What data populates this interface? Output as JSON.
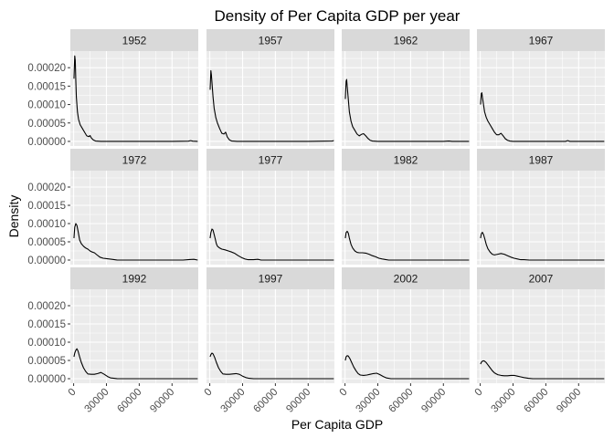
{
  "chart_data": {
    "type": "line",
    "title": "Density of Per Capita GDP per year",
    "xlabel": "Per Capita GDP",
    "ylabel": "Density",
    "xlim": [
      -3000,
      114000
    ],
    "ylim": [
      -1.25e-05,
      0.000245
    ],
    "x_ticks": [
      0,
      30000,
      60000,
      90000
    ],
    "x_tick_labels": [
      "0",
      "30000",
      "60000",
      "90000"
    ],
    "y_ticks": [
      0,
      5e-05,
      0.0001,
      0.00015,
      0.0002
    ],
    "y_tick_labels": [
      "0.00000",
      "0.00005",
      "0.00010",
      "0.00015",
      "0.00020"
    ],
    "grid": true,
    "colors": {
      "panel_bg": "#ebebeb",
      "strip_bg": "#d9d9d9",
      "grid": "#ffffff",
      "line": "#000000"
    },
    "panels": [
      {
        "label": "1952",
        "x": [
          300,
          1000,
          1500,
          2000,
          2500,
          3500,
          4500,
          6000,
          8000,
          10000,
          12000,
          14000,
          15000,
          16000,
          18000,
          20000,
          25000,
          30000,
          50000,
          90000,
          105000,
          107000,
          109000,
          113500
        ],
        "y": [
          0.00017,
          0.000232,
          0.00022,
          0.000165,
          0.00012,
          8e-05,
          6e-05,
          4.5e-05,
          3.5e-05,
          2.5e-05,
          1.5e-05,
          1.3e-05,
          1.6e-05,
          1e-05,
          4e-06,
          1e-06,
          0,
          0,
          0,
          0,
          6e-07,
          2e-06,
          6e-07,
          0
        ]
      },
      {
        "label": "1957",
        "x": [
          300,
          1000,
          1500,
          2000,
          3000,
          4000,
          5500,
          7000,
          9000,
          11000,
          13000,
          14500,
          16000,
          18000,
          20000,
          25000,
          30000,
          50000,
          90000,
          112000,
          113500
        ],
        "y": [
          0.00014,
          0.000192,
          0.00018,
          0.00016,
          0.00012,
          9e-05,
          6.5e-05,
          5e-05,
          3.5e-05,
          2.2e-05,
          2e-05,
          2.5e-05,
          1.2e-05,
          4e-06,
          1e-06,
          0,
          0,
          0,
          0,
          1e-06,
          2e-06
        ]
      },
      {
        "label": "1962",
        "x": [
          300,
          1000,
          1500,
          2000,
          3000,
          4000,
          5500,
          7000,
          9000,
          11000,
          13000,
          15000,
          17000,
          19000,
          21000,
          23000,
          25000,
          30000,
          50000,
          90000,
          95000,
          98000,
          113500
        ],
        "y": [
          0.000115,
          0.000163,
          0.000168,
          0.00015,
          0.000115,
          8e-05,
          5.5e-05,
          4e-05,
          3e-05,
          2e-05,
          1.5e-05,
          1.9e-05,
          2.1e-05,
          1.5e-05,
          8e-06,
          3e-06,
          1e-06,
          0,
          0,
          0,
          1e-06,
          0,
          0
        ]
      },
      {
        "label": "1967",
        "x": [
          300,
          1000,
          1500,
          2000,
          3000,
          4000,
          5500,
          7000,
          9000,
          11000,
          13000,
          15000,
          17000,
          19000,
          21000,
          23000,
          25000,
          27000,
          30000,
          50000,
          78000,
          80000,
          82000,
          113500
        ],
        "y": [
          0.0001,
          0.00013,
          0.000132,
          0.00012,
          0.0001,
          8e-05,
          6.5e-05,
          5.5e-05,
          4.5e-05,
          3.5e-05,
          2.5e-05,
          1.8e-05,
          1.8e-05,
          2.2e-05,
          1.5e-05,
          7e-06,
          3e-06,
          1e-06,
          0,
          0,
          0,
          2e-06,
          0,
          0
        ]
      },
      {
        "label": "1972",
        "x": [
          300,
          1000,
          2000,
          3000,
          4000,
          5500,
          7000,
          9000,
          11000,
          13000,
          15000,
          17000,
          19000,
          21000,
          24000,
          27000,
          30000,
          35000,
          40000,
          60000,
          100000,
          106000,
          110000,
          113500
        ],
        "y": [
          6e-05,
          9e-05,
          0.0001,
          9.5e-05,
          8e-05,
          5.5e-05,
          4.5e-05,
          3.8e-05,
          3.3e-05,
          3e-05,
          2.5e-05,
          2.2e-05,
          2e-05,
          1.5e-05,
          8e-06,
          5e-06,
          4e-06,
          2e-06,
          0,
          0,
          0,
          1.5e-06,
          2e-06,
          0
        ]
      },
      {
        "label": "1977",
        "x": [
          300,
          1000,
          2000,
          3000,
          4000,
          5000,
          6000,
          7000,
          9000,
          11000,
          14000,
          17000,
          20000,
          23000,
          26000,
          29000,
          32000,
          35000,
          40000,
          44000,
          47000,
          60000,
          113500
        ],
        "y": [
          6e-05,
          7.5e-05,
          8.5e-05,
          8.2e-05,
          7e-05,
          5.8e-05,
          4.5e-05,
          3.8e-05,
          3.3e-05,
          3e-05,
          2.8e-05,
          2.5e-05,
          2.2e-05,
          1.8e-05,
          1.2e-05,
          7e-06,
          3e-06,
          1e-06,
          1e-06,
          2e-06,
          0,
          0,
          0
        ]
      },
      {
        "label": "1982",
        "x": [
          300,
          1000,
          2000,
          3000,
          4000,
          5500,
          7000,
          9000,
          11000,
          13000,
          16000,
          19000,
          22000,
          25000,
          28000,
          31000,
          34000,
          37000,
          40000,
          60000,
          113500
        ],
        "y": [
          6e-05,
          7.5e-05,
          7.9e-05,
          7.4e-05,
          6e-05,
          4.3e-05,
          3.3e-05,
          2.5e-05,
          2.1e-05,
          2e-05,
          2e-05,
          1.9e-05,
          1.6e-05,
          1.2e-05,
          9e-06,
          5e-06,
          3e-06,
          1.5e-06,
          0,
          0,
          0
        ]
      },
      {
        "label": "1987",
        "x": [
          300,
          1000,
          2000,
          3000,
          4000,
          5500,
          7000,
          9000,
          11000,
          13000,
          16000,
          19000,
          22000,
          25000,
          28000,
          31000,
          34000,
          37000,
          40000,
          45000,
          60000,
          113500
        ],
        "y": [
          6e-05,
          7.2e-05,
          7.6e-05,
          7e-05,
          6e-05,
          4.3e-05,
          3.1e-05,
          2.2e-05,
          1.6e-05,
          1.4e-05,
          1.6e-05,
          1.8e-05,
          1.6e-05,
          1.2e-05,
          8e-06,
          5e-06,
          3e-06,
          1e-06,
          1e-06,
          0,
          0,
          0
        ]
      },
      {
        "label": "1992",
        "x": [
          300,
          1000,
          2000,
          3000,
          4000,
          5500,
          7000,
          9000,
          11000,
          13000,
          16000,
          19000,
          22000,
          25000,
          28000,
          31000,
          34000,
          37000,
          40000,
          50000,
          113500
        ],
        "y": [
          6e-05,
          7e-05,
          7.8e-05,
          8.2e-05,
          7.6e-05,
          6e-05,
          4.5e-05,
          3e-05,
          2e-05,
          1.3e-05,
          1.2e-05,
          1.2e-05,
          1.4e-05,
          1.7e-05,
          1.2e-05,
          6e-06,
          2e-06,
          1e-06,
          0,
          0,
          0
        ]
      },
      {
        "label": "1997",
        "x": [
          300,
          1000,
          2000,
          3000,
          4500,
          6000,
          8000,
          10000,
          12000,
          15000,
          18000,
          21000,
          24000,
          27000,
          30000,
          33000,
          36000,
          40000,
          50000,
          113500
        ],
        "y": [
          6e-05,
          6.6e-05,
          7e-05,
          6.8e-05,
          5.8e-05,
          4.5e-05,
          3e-05,
          2e-05,
          1.3e-05,
          1.2e-05,
          1.2e-05,
          1.3e-05,
          1.4e-05,
          1.2e-05,
          7e-06,
          3e-06,
          1e-06,
          0,
          0,
          0
        ]
      },
      {
        "label": "2002",
        "x": [
          300,
          1000,
          2000,
          3000,
          4500,
          6000,
          8000,
          10000,
          12000,
          14000,
          17000,
          20000,
          23000,
          26000,
          29000,
          32000,
          35000,
          38000,
          42000,
          50000,
          113500
        ],
        "y": [
          5e-05,
          6e-05,
          6.3e-05,
          6.2e-05,
          5.5e-05,
          4.5e-05,
          3.2e-05,
          2.2e-05,
          1.4e-05,
          1e-05,
          9e-06,
          1e-05,
          1.2e-05,
          1.4e-05,
          1.5e-05,
          1.1e-05,
          6e-06,
          2e-06,
          0,
          0,
          0
        ]
      },
      {
        "label": "2007",
        "x": [
          300,
          1000,
          2000,
          3000,
          4000,
          5500,
          7000,
          9000,
          11000,
          13000,
          16000,
          19000,
          22000,
          25000,
          28000,
          31000,
          34000,
          37000,
          40000,
          44000,
          48000,
          60000,
          113500
        ],
        "y": [
          4e-05,
          4.5e-05,
          4.8e-05,
          4.9e-05,
          4.8e-05,
          4.4e-05,
          3.8e-05,
          3e-05,
          2.2e-05,
          1.6e-05,
          1.1e-05,
          9e-06,
          8e-06,
          8e-06,
          9e-06,
          9e-06,
          7e-06,
          5e-06,
          3e-06,
          1e-06,
          0,
          0,
          0
        ]
      }
    ]
  }
}
